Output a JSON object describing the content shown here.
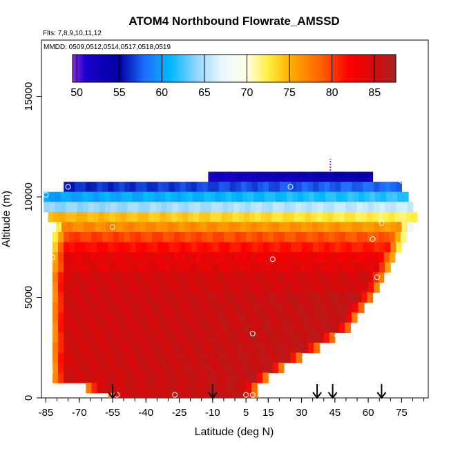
{
  "chart_data": {
    "type": "heatmap",
    "title": "ATOM4 Northbound Flowrate_AMSSD",
    "flights_label": "Flts: 7,8,9,10,11,12",
    "dates_label": "MMDD: 0509,0512,0514,0517,0518,0519",
    "xlabel": "Latitude (deg N)",
    "ylabel": "Altitude (m)",
    "x_ticks": [
      "-85",
      "-70",
      "-55",
      "-40",
      "-25",
      "-10",
      "5",
      "15",
      "30",
      "45",
      "60",
      "75"
    ],
    "x_tick_values": [
      -85,
      -70,
      -55,
      -40,
      -25,
      -10,
      5,
      15,
      30,
      45,
      60,
      75
    ],
    "y_ticks": [
      "0",
      "5000",
      "10000",
      "15000"
    ],
    "y_tick_values": [
      0,
      5000,
      10000,
      15000
    ],
    "xlim": [
      -87,
      87
    ],
    "ylim": [
      0,
      17800
    ],
    "colorbar": {
      "ticks": [
        "50",
        "55",
        "60",
        "65",
        "70",
        "75",
        "80",
        "85"
      ],
      "tick_values": [
        50,
        55,
        60,
        65,
        70,
        75,
        80,
        85
      ],
      "range": [
        49.5,
        87.5
      ],
      "stops": [
        {
          "v": 49.5,
          "c": "#8a2be2"
        },
        {
          "v": 51.0,
          "c": "#1a00cc"
        },
        {
          "v": 55.0,
          "c": "#0000a0"
        },
        {
          "v": 58.0,
          "c": "#1e6fff"
        },
        {
          "v": 61.0,
          "c": "#00b8ff"
        },
        {
          "v": 64.0,
          "c": "#8fd4ff"
        },
        {
          "v": 67.0,
          "c": "#e8f6ff"
        },
        {
          "v": 70.0,
          "c": "#ffffe8"
        },
        {
          "v": 72.5,
          "c": "#ffee40"
        },
        {
          "v": 75.0,
          "c": "#ffb000"
        },
        {
          "v": 79.0,
          "c": "#ff5a00"
        },
        {
          "v": 82.0,
          "c": "#ff0000"
        },
        {
          "v": 85.0,
          "c": "#d30b0b"
        },
        {
          "v": 87.5,
          "c": "#a52424"
        }
      ]
    },
    "layers": [
      {
        "alt": 11000,
        "lat_min": -12,
        "lat_max": 62,
        "value_left": 52,
        "value_right": 54
      },
      {
        "alt": 10500,
        "lat_min": -77,
        "lat_max": 75,
        "value_left": 56,
        "value_right": 58
      },
      {
        "alt": 10000,
        "lat_min": -86,
        "lat_max": 78,
        "value_left": 60,
        "value_right": 62
      },
      {
        "alt": 9500,
        "lat_min": -86,
        "lat_max": 80,
        "value_left": 64,
        "value_right": 66
      },
      {
        "alt": 9000,
        "lat_min": -84,
        "lat_max": 82,
        "value_left": 75,
        "value_right": 72
      },
      {
        "alt": 8500,
        "lat_min": -83,
        "lat_max": 80,
        "value_left": 77,
        "value_right": 76
      },
      {
        "alt": 8000,
        "lat_min": -82,
        "lat_max": 77,
        "value_left": 80,
        "value_right": 79
      },
      {
        "alt": 7500,
        "lat_min": -82,
        "lat_max": 75,
        "value_left": 82,
        "value_right": 81
      },
      {
        "alt": 7000,
        "lat_min": -82,
        "lat_max": 72,
        "value_left": 84,
        "value_right": 83
      },
      {
        "alt": 6500,
        "lat_min": -82,
        "lat_max": 70,
        "value_left": 84,
        "value_right": 84
      },
      {
        "alt": 6000,
        "lat_min": -82,
        "lat_max": 67,
        "value_left": 85,
        "value_right": 85
      },
      {
        "alt": 5500,
        "lat_min": -82,
        "lat_max": 65,
        "value_left": 85,
        "value_right": 85
      },
      {
        "alt": 5000,
        "lat_min": -82,
        "lat_max": 62,
        "value_left": 85,
        "value_right": 86
      },
      {
        "alt": 4500,
        "lat_min": -82,
        "lat_max": 58,
        "value_left": 85,
        "value_right": 86
      },
      {
        "alt": 4000,
        "lat_min": -82,
        "lat_max": 55,
        "value_left": 85,
        "value_right": 86
      },
      {
        "alt": 3500,
        "lat_min": -82,
        "lat_max": 52,
        "value_left": 85,
        "value_right": 86
      },
      {
        "alt": 3000,
        "lat_min": -82,
        "lat_max": 45,
        "value_left": 85,
        "value_right": 86
      },
      {
        "alt": 2500,
        "lat_min": -82,
        "lat_max": 38,
        "value_left": 85,
        "value_right": 86
      },
      {
        "alt": 2000,
        "lat_min": -82,
        "lat_max": 30,
        "value_left": 85,
        "value_right": 86
      },
      {
        "alt": 1500,
        "lat_min": -82,
        "lat_max": 22,
        "value_left": 85,
        "value_right": 86
      },
      {
        "alt": 1000,
        "lat_min": -82,
        "lat_max": 15,
        "value_left": 85,
        "value_right": 86
      },
      {
        "alt": 500,
        "lat_min": -67,
        "lat_max": 10,
        "value_left": 85,
        "value_right": 86
      },
      {
        "alt": 0,
        "lat_min": -57,
        "lat_max": 10,
        "value_left": 85,
        "value_right": 86
      }
    ],
    "observation_points": [
      {
        "lat": -85,
        "alt": 10100
      },
      {
        "lat": -75,
        "alt": 10500
      },
      {
        "lat": -55,
        "alt": 8500
      },
      {
        "lat": -82,
        "alt": 7000
      },
      {
        "lat": 17,
        "alt": 6900
      },
      {
        "lat": 25,
        "alt": 10500
      },
      {
        "lat": 62,
        "alt": 7900
      },
      {
        "lat": 66,
        "alt": 8700
      },
      {
        "lat": 64,
        "alt": 6000
      },
      {
        "lat": 75,
        "alt": 10800
      },
      {
        "lat": 8,
        "alt": 3200
      },
      {
        "lat": 46,
        "alt": 3100
      },
      {
        "lat": -83,
        "alt": 1300
      },
      {
        "lat": -53,
        "alt": 150
      },
      {
        "lat": -27,
        "alt": 150
      },
      {
        "lat": 5,
        "alt": 150
      },
      {
        "lat": 8,
        "alt": 150
      }
    ],
    "arrows": [
      -55,
      -10,
      37,
      44,
      66
    ],
    "marker_line": {
      "lat": 43,
      "alt_min": 11300,
      "alt_max": 11900
    }
  }
}
